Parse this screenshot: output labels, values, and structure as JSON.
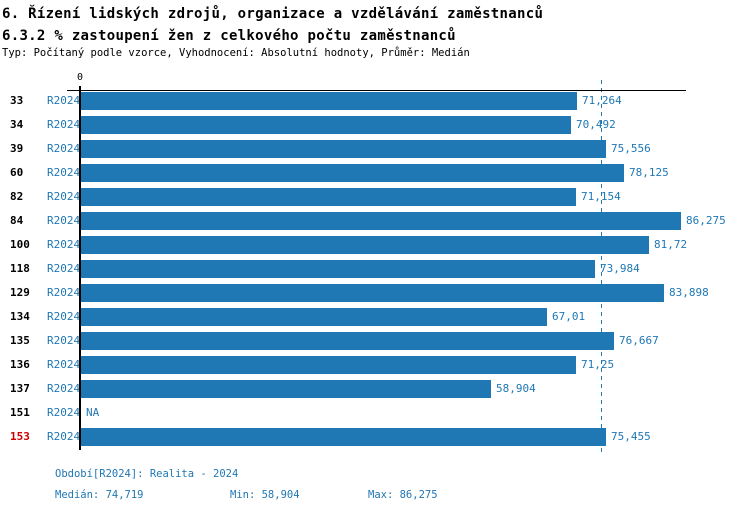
{
  "header": {
    "title_line1": "6. Řízení lidských zdrojů, organizace a vzdělávání zaměstnanců",
    "title_line2": "6.3.2 % zastoupení žen z celkového počtu zaměstnanců",
    "meta": "Typ: Počítaný podle vzorce, Vyhodnocení: Absolutní hodnoty, Průměr: Medián"
  },
  "chart_data": {
    "type": "bar",
    "orientation": "horizontal",
    "categories": [
      "33",
      "34",
      "39",
      "60",
      "82",
      "84",
      "100",
      "118",
      "129",
      "134",
      "135",
      "136",
      "137",
      "151",
      "153"
    ],
    "series_label": "R2024",
    "values": [
      71.264,
      70.492,
      75.556,
      78.125,
      71.154,
      86.275,
      81.72,
      73.984,
      83.898,
      67.01,
      76.667,
      71.25,
      58.904,
      null,
      75.455
    ],
    "value_labels": [
      "71,264",
      "70,492",
      "75,556",
      "78,125",
      "71,154",
      "86,275",
      "81,72",
      "73,984",
      "83,898",
      "67,01",
      "76,667",
      "71,25",
      "58,904",
      "NA",
      "75,455"
    ],
    "na_label": "NA",
    "highlighted_category": "153",
    "median": 74.719,
    "xlim": [
      0,
      87
    ],
    "zero_tick_label": "0",
    "grid": false,
    "legend_position": "none",
    "bar_color": "#1f77b4",
    "median_line_color": "#1f77b4",
    "highlight_color": "#cc0000"
  },
  "footer": {
    "period": "Období[R2024]: Realita - 2024",
    "median": "Medián: 74,719",
    "min": "Min: 58,904",
    "max": "Max: 86,275"
  }
}
